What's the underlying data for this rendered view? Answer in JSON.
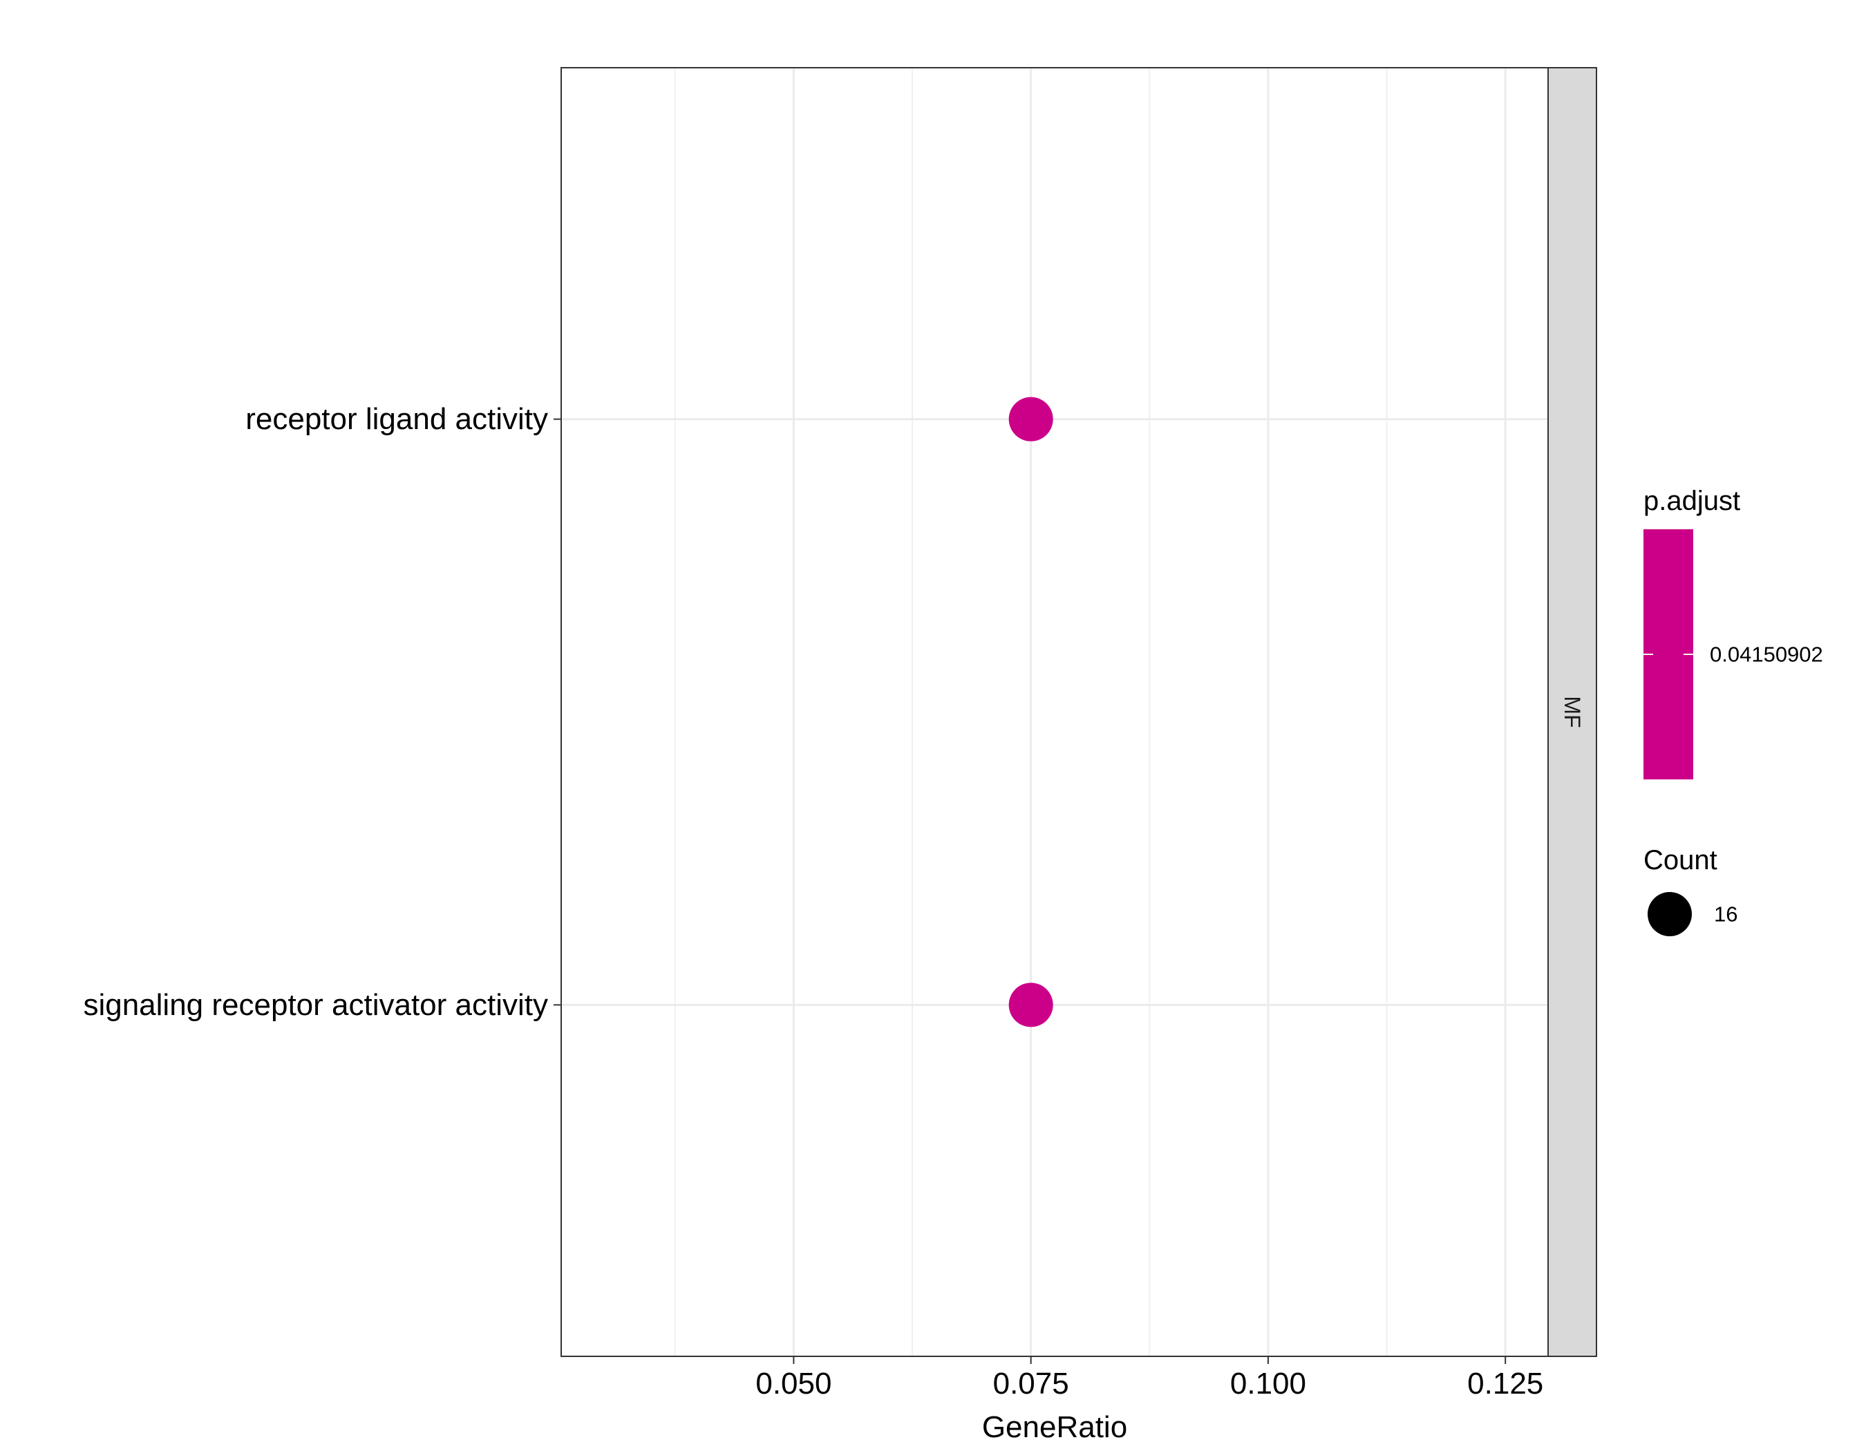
{
  "chart_data": {
    "type": "scatter",
    "xlabel": "GeneRatio",
    "ylabel": "",
    "xlim": [
      0.0255,
      0.1295
    ],
    "x_ticks": [
      0.05,
      0.075,
      0.1,
      0.125
    ],
    "x_tick_labels": [
      "0.050",
      "0.075",
      "0.100",
      "0.125"
    ],
    "categories": [
      "receptor ligand activity",
      "signaling receptor activator activity"
    ],
    "points": [
      {
        "category": "receptor ligand activity",
        "x": 0.075,
        "count": 16,
        "p_adjust": 0.04150902
      },
      {
        "category": "signaling receptor activator activity",
        "x": 0.075,
        "count": 16,
        "p_adjust": 0.04150902
      }
    ],
    "facet": "MF",
    "grid": true,
    "point_color": "#CC0088",
    "legend": {
      "placement": "right",
      "color_title": "p.adjust",
      "color_label": "0.04150902",
      "size_title": "Count",
      "size_label": "16"
    }
  }
}
